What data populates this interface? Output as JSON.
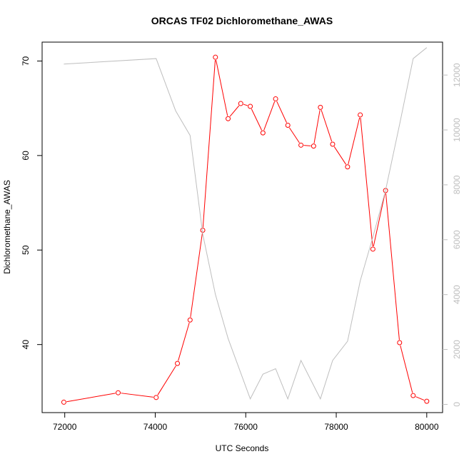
{
  "chart_data": {
    "type": "line",
    "title": "ORCAS TF02 Dichloromethane_AWAS",
    "xlabel": "UTC Seconds",
    "ylabel": "Dichloromethane_AWAS",
    "xlim": [
      71500,
      80350
    ],
    "ylim": [
      32.8,
      72.0
    ],
    "y2lim": [
      -300,
      13200
    ],
    "xticks": [
      72000,
      74000,
      76000,
      78000,
      80000
    ],
    "yticks": [
      40,
      50,
      60,
      70
    ],
    "y2ticks": [
      0,
      2000,
      4000,
      6000,
      8000,
      10000,
      12000
    ],
    "grid": false,
    "legend": "none",
    "series": [
      {
        "axis": "left",
        "color": "#ff0000",
        "markers": "open-circle",
        "x": [
          71980,
          73180,
          74020,
          74490,
          74770,
          75050,
          75330,
          75610,
          75890,
          76100,
          76380,
          76660,
          76930,
          77220,
          77500,
          77650,
          77920,
          78250,
          78530,
          78810,
          79090,
          79400,
          79700,
          80000
        ],
        "y": [
          33.9,
          34.9,
          34.4,
          38.0,
          42.6,
          52.1,
          70.4,
          63.9,
          65.5,
          65.2,
          62.4,
          66.0,
          63.2,
          61.1,
          61.0,
          65.1,
          61.2,
          58.8,
          64.3,
          50.1,
          56.3,
          40.2,
          34.6,
          34.0
        ]
      },
      {
        "axis": "right",
        "color": "#bebebe",
        "markers": "none",
        "x": [
          71980,
          74020,
          74450,
          74770,
          75050,
          75330,
          75610,
          76100,
          76380,
          76660,
          76930,
          77220,
          77650,
          77920,
          78250,
          78530,
          78810,
          79090,
          79400,
          79700,
          80000
        ],
        "y": [
          12400,
          12600,
          10700,
          9800,
          6200,
          4000,
          2400,
          200,
          1100,
          1300,
          200,
          1600,
          200,
          1600,
          2300,
          4500,
          6100,
          7800,
          10200,
          12600,
          13000
        ]
      }
    ]
  }
}
